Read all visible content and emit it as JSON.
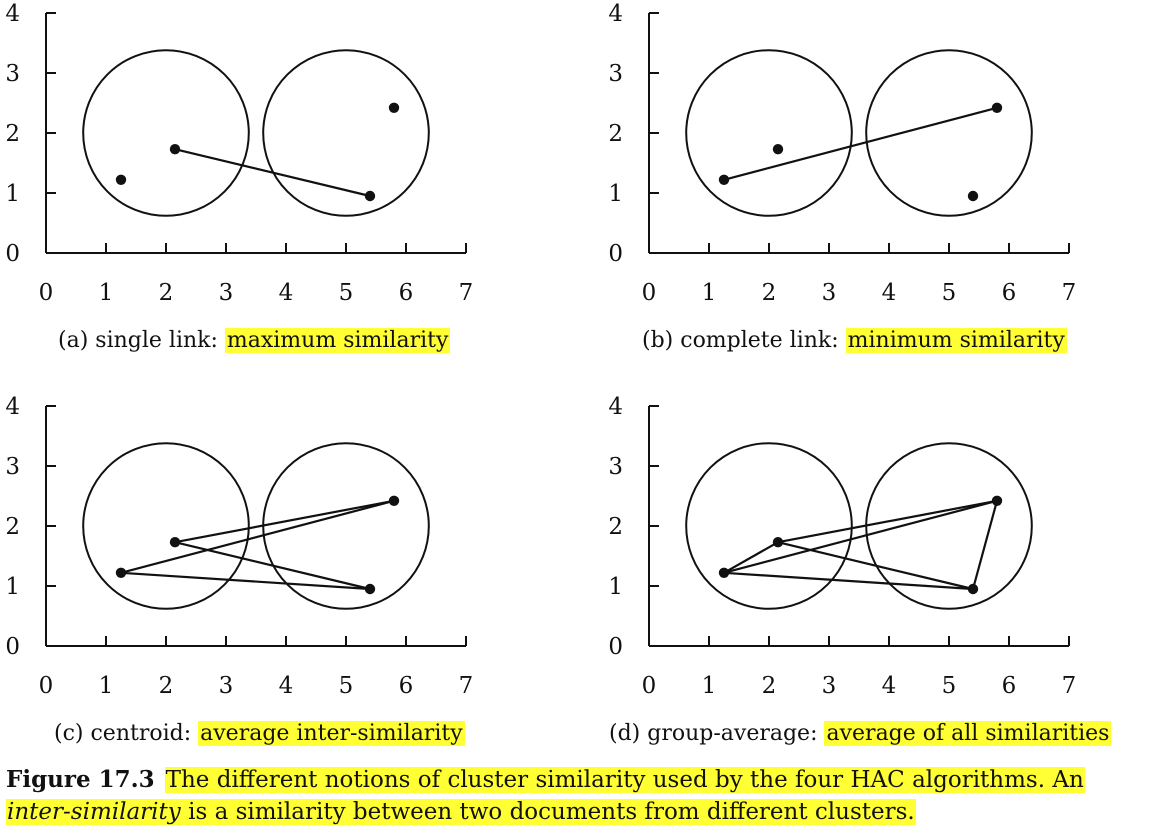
{
  "panels": [
    {
      "id": "a",
      "caption_prefix": "(a) single link: ",
      "caption_highlight": "maximum similarity",
      "x_ticks": [
        "0",
        "1",
        "2",
        "3",
        "4",
        "5",
        "6",
        "7"
      ],
      "y_ticks": [
        "0",
        "1",
        "2",
        "3",
        "4"
      ],
      "links": [
        [
          1,
          3
        ]
      ]
    },
    {
      "id": "b",
      "caption_prefix": "(b) complete link: ",
      "caption_highlight": "minimum similarity",
      "x_ticks": [
        "0",
        "1",
        "2",
        "3",
        "4",
        "5",
        "6",
        "7"
      ],
      "y_ticks": [
        "0",
        "1",
        "2",
        "3",
        "4"
      ],
      "links": [
        [
          0,
          2
        ]
      ]
    },
    {
      "id": "c",
      "caption_prefix": "(c) centroid: ",
      "caption_highlight": "average inter-similarity",
      "x_ticks": [
        "0",
        "1",
        "2",
        "3",
        "4",
        "5",
        "6",
        "7"
      ],
      "y_ticks": [
        "0",
        "1",
        "2",
        "3",
        "4"
      ],
      "links": [
        [
          0,
          2
        ],
        [
          0,
          3
        ],
        [
          1,
          2
        ],
        [
          1,
          3
        ]
      ]
    },
    {
      "id": "d",
      "caption_prefix": "(d) group-average: ",
      "caption_highlight": "average of all similarities",
      "x_ticks": [
        "0",
        "1",
        "2",
        "3",
        "4",
        "5",
        "6",
        "7"
      ],
      "y_ticks": [
        "0",
        "1",
        "2",
        "3",
        "4"
      ],
      "links": [
        [
          0,
          1
        ],
        [
          0,
          2
        ],
        [
          0,
          3
        ],
        [
          1,
          2
        ],
        [
          1,
          3
        ],
        [
          2,
          3
        ]
      ]
    }
  ],
  "chart_data": {
    "type": "scatter",
    "xlim": [
      0,
      7
    ],
    "ylim": [
      0,
      4
    ],
    "points": [
      {
        "x": 1.25,
        "y": 1.22
      },
      {
        "x": 2.15,
        "y": 1.73
      },
      {
        "x": 5.8,
        "y": 2.42
      },
      {
        "x": 5.4,
        "y": 0.95
      }
    ],
    "clusters": [
      {
        "center_x": 2.0,
        "center_y": 2.0,
        "radius": 1.38
      },
      {
        "center_x": 5.0,
        "center_y": 2.0,
        "radius": 1.38
      }
    ]
  },
  "figure_caption": {
    "label": "Figure 17.3",
    "highlight_part1": "The different notions of cluster similarity used by the four HAC algorithms. An",
    "italic_term": "inter-similarity",
    "highlight_part2": " is a similarity between two documents from different clusters."
  },
  "colors": {
    "highlight": "#ffff33",
    "ink": "#111111"
  }
}
